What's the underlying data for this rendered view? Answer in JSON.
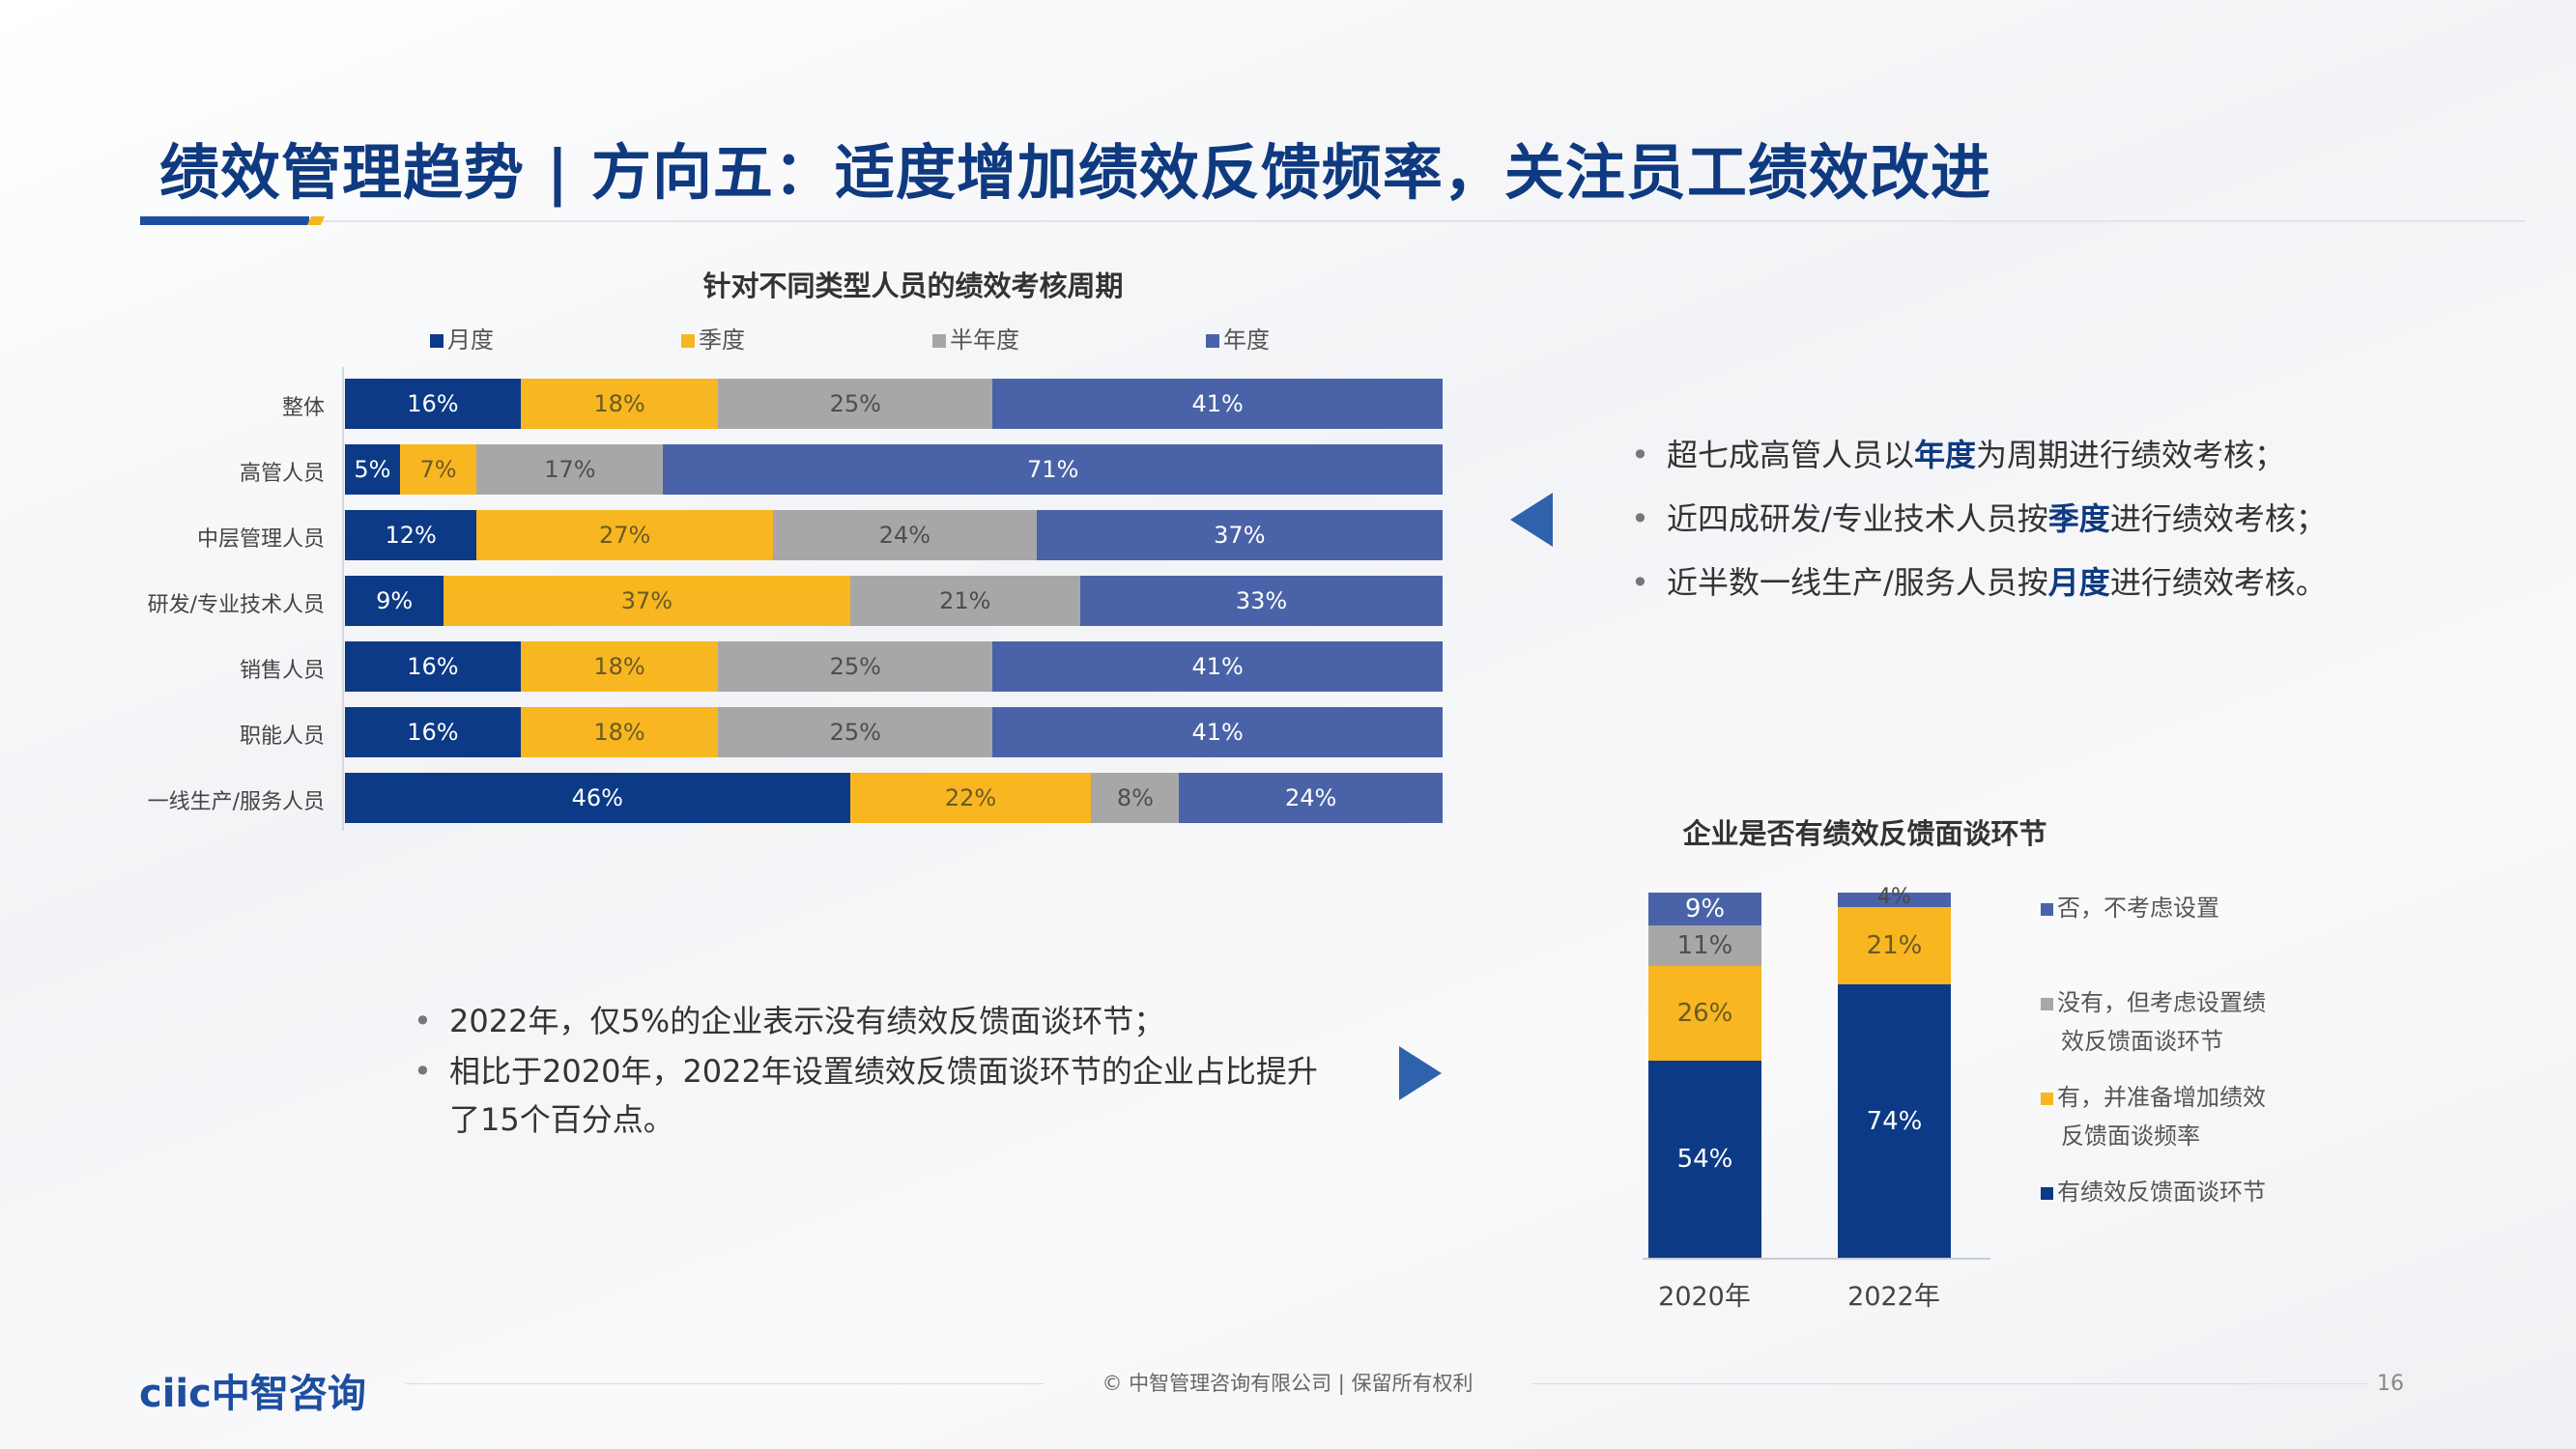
{
  "title": "绩效管理趋势 | 方向五：适度增加绩效反馈频率，关注员工绩效改进",
  "colors": {
    "monthly": "#0d3a86",
    "quarterly": "#f8b621",
    "half": "#a7a7a7",
    "annual": "#4a63a8",
    "title": "#0f3a80"
  },
  "chart_data": [
    {
      "type": "bar",
      "orientation": "horizontal",
      "stacked": true,
      "title": "针对不同类型人员的绩效考核周期",
      "legend_position": "top",
      "categories": [
        "整体",
        "高管人员",
        "中层管理人员",
        "研发/专业技术人员",
        "销售人员",
        "职能人员",
        "一线生产/服务人员"
      ],
      "series": [
        {
          "name": "月度",
          "color": "#0d3a86",
          "values": [
            16,
            5,
            12,
            9,
            16,
            16,
            46
          ]
        },
        {
          "name": "季度",
          "color": "#f8b621",
          "values": [
            18,
            7,
            27,
            37,
            18,
            18,
            22
          ]
        },
        {
          "name": "半年度",
          "color": "#a7a7a7",
          "values": [
            25,
            17,
            24,
            21,
            25,
            25,
            8
          ]
        },
        {
          "name": "年度",
          "color": "#4a63a8",
          "values": [
            41,
            71,
            37,
            33,
            41,
            41,
            24
          ]
        }
      ]
    },
    {
      "type": "bar",
      "orientation": "vertical",
      "stacked": true,
      "title": "企业是否有绩效反馈面谈环节",
      "legend_position": "right",
      "categories": [
        "2020年",
        "2022年"
      ],
      "series": [
        {
          "name": "有绩效反馈面谈环节",
          "color": "#0d3a86",
          "values": [
            54,
            74
          ]
        },
        {
          "name": "有，并准备增加绩效反馈面谈频率",
          "color": "#f8b621",
          "values": [
            26,
            21
          ]
        },
        {
          "name": "没有，但考虑设置绩效反馈面谈环节",
          "color": "#a7a7a7",
          "values": [
            11,
            null
          ]
        },
        {
          "name": "否，不考虑设置",
          "color": "#4a63a8",
          "values": [
            9,
            4
          ]
        }
      ]
    }
  ],
  "insights_right": [
    {
      "pre": "超七成高管人员以",
      "hl": "年度",
      "post": "为周期进行绩效考核；"
    },
    {
      "pre": "近四成研发/专业技术人员按",
      "hl": "季度",
      "post": "进行绩效考核；"
    },
    {
      "pre": "近半数一线生产/服务人员按",
      "hl": "月度",
      "post": "进行绩效考核。"
    }
  ],
  "insights_left": [
    "2022年，仅5%的企业表示没有绩效反馈面谈环节；",
    "相比于2020年，2022年设置绩效反馈面谈环节的企业占比提升了15个百分点。"
  ],
  "legend2_labels": [
    {
      "line1": "否，不考虑设置",
      "line2": ""
    },
    {
      "line1": "没有，但考虑设置绩",
      "line2": "效反馈面谈环节"
    },
    {
      "line1": "有，并准备增加绩效",
      "line2": "反馈面谈频率"
    },
    {
      "line1": "有绩效反馈面谈环节",
      "line2": ""
    }
  ],
  "footer": {
    "logo": "ciic中智咨询",
    "copyright": "© 中智管理咨询有限公司 | 保留所有权利",
    "page": "16"
  }
}
